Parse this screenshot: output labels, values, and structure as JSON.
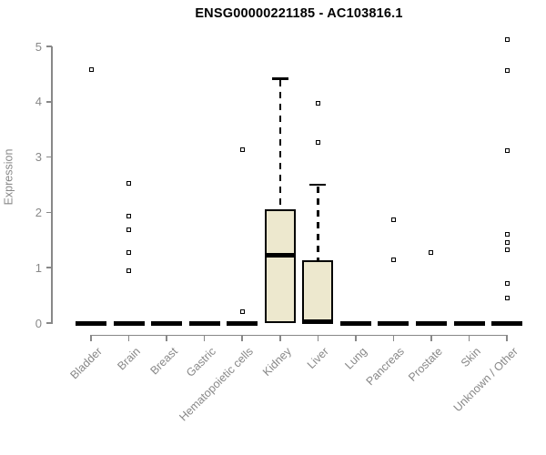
{
  "colors": {
    "box_fill": "#EDE8CE",
    "box_border": "#000000",
    "axis_line": "#888888",
    "axis_text": "#888888",
    "title_color": "#000000",
    "background": "#FFFFFF"
  },
  "chart_data": {
    "type": "boxplot",
    "title": "ENSG00000221185 - AC103816.1",
    "xlabel": "",
    "ylabel": "Expression",
    "ylim": [
      0,
      5
    ],
    "y_ticks": [
      0,
      1,
      2,
      3,
      4,
      5
    ],
    "grid": false,
    "legend": "none",
    "categories": [
      "Bladder",
      "Brain",
      "Breast",
      "Gastric",
      "Hematopoietic cells",
      "Kidney",
      "Liver",
      "Lung",
      "Pancreas",
      "Prostate",
      "Skin",
      "Unknown / Other"
    ],
    "series": [
      {
        "category": "Bladder",
        "whisker_low": 0,
        "q1": 0,
        "median": 0,
        "q3": 0,
        "whisker_high": 0,
        "outliers": [
          4.58
        ]
      },
      {
        "category": "Brain",
        "whisker_low": 0,
        "q1": 0,
        "median": 0,
        "q3": 0,
        "whisker_high": 0,
        "outliers": [
          2.52,
          1.94,
          1.68,
          1.28,
          0.95
        ]
      },
      {
        "category": "Breast",
        "whisker_low": 0,
        "q1": 0,
        "median": 0,
        "q3": 0,
        "whisker_high": 0,
        "outliers": []
      },
      {
        "category": "Gastric",
        "whisker_low": 0,
        "q1": 0,
        "median": 0,
        "q3": 0,
        "whisker_high": 0,
        "outliers": []
      },
      {
        "category": "Hematopoietic cells",
        "whisker_low": 0,
        "q1": 0,
        "median": 0,
        "q3": 0,
        "whisker_high": 0,
        "outliers": [
          3.14,
          0.2
        ]
      },
      {
        "category": "Kidney",
        "whisker_low": 0,
        "q1": 0,
        "median": 1.22,
        "q3": 2.06,
        "whisker_high": 4.42,
        "outliers": []
      },
      {
        "category": "Liver",
        "whisker_low": 0,
        "q1": 0,
        "median": 0.02,
        "q3": 1.13,
        "whisker_high": 2.5,
        "outliers": [
          3.98,
          3.27
        ]
      },
      {
        "category": "Lung",
        "whisker_low": 0,
        "q1": 0,
        "median": 0,
        "q3": 0,
        "whisker_high": 0,
        "outliers": []
      },
      {
        "category": "Pancreas",
        "whisker_low": 0,
        "q1": 0,
        "median": 0,
        "q3": 0,
        "whisker_high": 0,
        "outliers": [
          1.87,
          1.14
        ]
      },
      {
        "category": "Prostate",
        "whisker_low": 0,
        "q1": 0,
        "median": 0,
        "q3": 0,
        "whisker_high": 0,
        "outliers": [
          1.27
        ]
      },
      {
        "category": "Skin",
        "whisker_low": 0,
        "q1": 0,
        "median": 0,
        "q3": 0,
        "whisker_high": 0,
        "outliers": []
      },
      {
        "category": "Unknown / Other",
        "whisker_low": 0,
        "q1": 0,
        "median": 0,
        "q3": 0,
        "whisker_high": 0,
        "outliers": [
          5.13,
          4.57,
          3.11,
          1.61,
          1.46,
          1.33,
          0.72,
          0.46
        ]
      }
    ]
  }
}
